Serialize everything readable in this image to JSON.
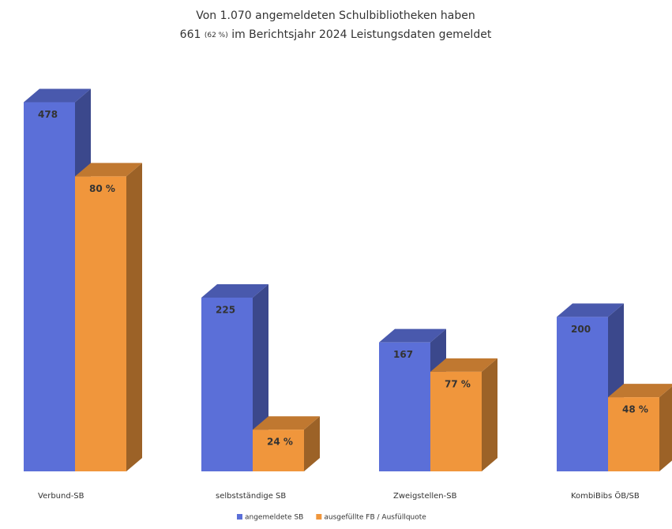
{
  "chart_data": {
    "type": "bar3d",
    "title": [
      "Von 1.070 angemeldeten Schulbibliotheken haben",
      "661",
      "(62 %)",
      "im Berichtsjahr 2024 Leistungsdaten gemeldet"
    ],
    "categories": [
      "Verbund-SB",
      "selbstständige SB",
      "Zweigstellen-SB",
      "KombiBibs ÖB/SB"
    ],
    "series": [
      {
        "name": "angemeldete SB",
        "color": "#5b6fd8",
        "values": [
          478,
          225,
          167,
          200
        ]
      },
      {
        "name": "ausgefüllte FB / Ausfüllquote",
        "color": "#f0963c",
        "values": [
          382,
          54,
          129,
          96
        ],
        "value_labels": [
          "80 %",
          "24 %",
          "77 %",
          "48 %"
        ]
      }
    ],
    "ylim": [
      0,
      500
    ],
    "grid": false
  }
}
